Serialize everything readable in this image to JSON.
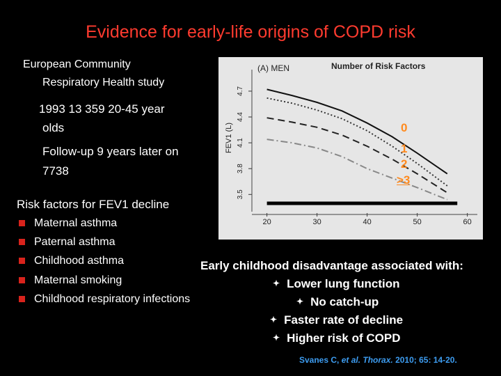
{
  "title": "Evidence for early-life origins of COPD risk",
  "study": {
    "line1": "European Community",
    "line2": "Respiratory Health study",
    "line3": "1993 13 359 20-45 year",
    "line4": "olds",
    "line5": "Follow-up 9 years later on",
    "line6": "7738"
  },
  "risk_factors": {
    "heading": "Risk factors for FEV1 decline",
    "items": [
      "Maternal asthma",
      "Paternal asthma",
      "Childhood asthma",
      "Maternal smoking",
      "Childhood respiratory infections"
    ]
  },
  "findings": {
    "heading": "Early childhood disadvantage associated with:",
    "items": [
      "Lower lung function",
      "No catch-up",
      "Faster rate of decline",
      "Higher risk of COPD"
    ]
  },
  "citation": {
    "authors": "Svanes C, ",
    "etal": "et al.",
    "journal": " Thorax.",
    "details": " 2010; 65: 14-20."
  },
  "chart_data": {
    "type": "line",
    "panel_label": "(A) MEN",
    "title": "Number of Risk Factors",
    "ylabel": "FEV1 (L)",
    "xlabel": "",
    "xlim": [
      17,
      62
    ],
    "ylim": [
      3.3,
      4.95
    ],
    "x_ticks": [
      20,
      30,
      40,
      50,
      60
    ],
    "y_ticks": [
      "3.5",
      "3.8",
      "4.1",
      "4.4",
      "4.7"
    ],
    "series": [
      {
        "name": "0",
        "style": "solid",
        "color": "#111111",
        "x": [
          20,
          25,
          30,
          35,
          40,
          45,
          50,
          56
        ],
        "y": [
          4.72,
          4.65,
          4.57,
          4.47,
          4.33,
          4.17,
          3.98,
          3.74
        ]
      },
      {
        "name": "1",
        "style": "dotted",
        "color": "#333333",
        "x": [
          20,
          25,
          30,
          35,
          40,
          45,
          50,
          56
        ],
        "y": [
          4.62,
          4.56,
          4.48,
          4.38,
          4.24,
          4.06,
          3.86,
          3.6
        ]
      },
      {
        "name": "2",
        "style": "dashed",
        "color": "#222222",
        "x": [
          20,
          25,
          30,
          35,
          40,
          45,
          50,
          56
        ],
        "y": [
          4.39,
          4.34,
          4.28,
          4.19,
          4.06,
          3.91,
          3.74,
          3.52
        ]
      },
      {
        "name": ">3",
        "style": "dashdot",
        "color": "#888888",
        "x": [
          20,
          25,
          30,
          35,
          40,
          45,
          50,
          56
        ],
        "y": [
          4.14,
          4.1,
          4.04,
          3.94,
          3.8,
          3.69,
          3.58,
          3.44
        ]
      }
    ],
    "series_label_colors": [
      "#ff8a1e",
      "#ff8a1e",
      "#ff8a1e",
      "#ff8a1e"
    ],
    "rug": {
      "x_start": 20,
      "x_end": 58
    }
  }
}
